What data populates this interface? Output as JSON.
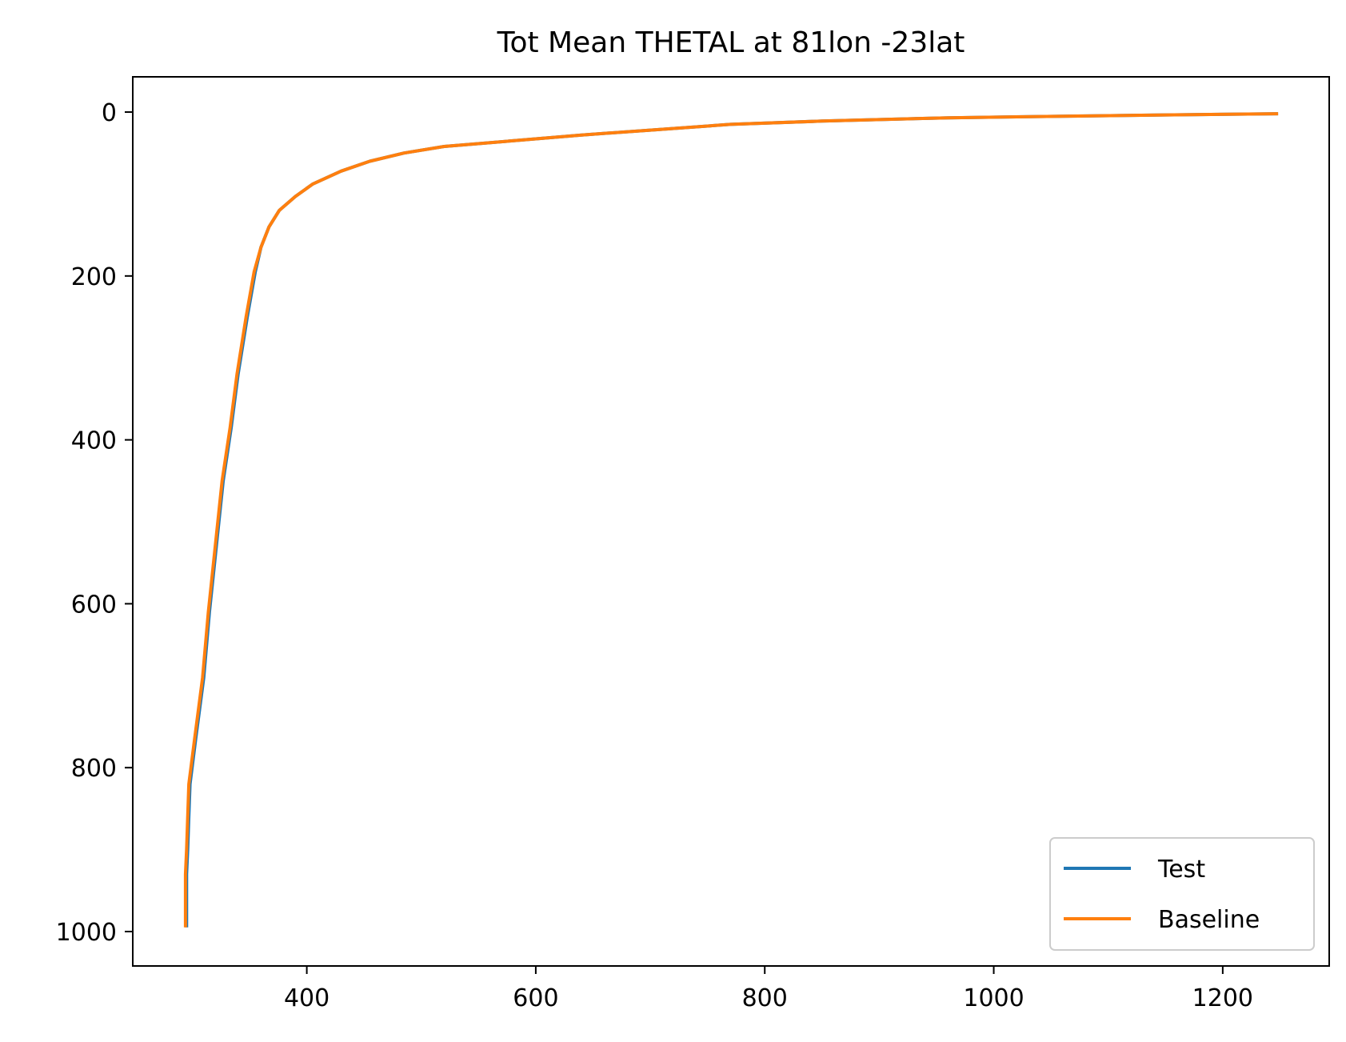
{
  "chart_data": {
    "type": "line",
    "title": "Tot Mean THETAL at 81lon -23lat",
    "xlabel": "",
    "ylabel": "",
    "xlim": [
      248,
      1293
    ],
    "ylim": [
      1042,
      -43
    ],
    "y_inverted": true,
    "grid": false,
    "legend_position": "lower-right",
    "x_ticks": [
      400,
      600,
      800,
      1000,
      1200
    ],
    "y_ticks": [
      0,
      200,
      400,
      600,
      800,
      1000
    ],
    "colors": {
      "test": "#1f77b4",
      "baseline": "#ff7f0e"
    },
    "series": [
      {
        "name": "Test",
        "color": "#1f77b4",
        "points": [
          [
            295,
            993
          ],
          [
            295,
            960
          ],
          [
            295,
            930
          ],
          [
            296,
            900
          ],
          [
            297,
            860
          ],
          [
            298,
            820
          ],
          [
            303,
            765
          ],
          [
            310,
            690
          ],
          [
            315,
            610
          ],
          [
            321,
            530
          ],
          [
            327,
            450
          ],
          [
            334,
            385
          ],
          [
            340,
            320
          ],
          [
            348,
            250
          ],
          [
            355,
            195
          ],
          [
            360,
            165
          ],
          [
            367,
            140
          ],
          [
            376,
            120
          ],
          [
            390,
            103
          ],
          [
            405,
            88
          ],
          [
            430,
            72
          ],
          [
            455,
            60
          ],
          [
            485,
            50
          ],
          [
            520,
            42
          ],
          [
            580,
            35
          ],
          [
            640,
            28
          ],
          [
            700,
            22
          ],
          [
            770,
            15
          ],
          [
            850,
            11
          ],
          [
            960,
            7
          ],
          [
            1060,
            5
          ],
          [
            1150,
            3.5
          ],
          [
            1247,
            2
          ]
        ]
      },
      {
        "name": "Baseline",
        "color": "#ff7f0e",
        "points": [
          [
            294,
            993
          ],
          [
            294,
            960
          ],
          [
            294,
            930
          ],
          [
            295,
            900
          ],
          [
            296,
            860
          ],
          [
            297,
            820
          ],
          [
            302,
            765
          ],
          [
            309,
            690
          ],
          [
            314,
            610
          ],
          [
            320,
            530
          ],
          [
            326,
            450
          ],
          [
            333,
            385
          ],
          [
            339,
            320
          ],
          [
            347,
            250
          ],
          [
            354,
            195
          ],
          [
            360,
            165
          ],
          [
            367,
            140
          ],
          [
            376,
            120
          ],
          [
            390,
            103
          ],
          [
            405,
            88
          ],
          [
            430,
            72
          ],
          [
            455,
            60
          ],
          [
            485,
            50
          ],
          [
            520,
            42
          ],
          [
            580,
            35
          ],
          [
            640,
            28
          ],
          [
            700,
            22
          ],
          [
            770,
            15
          ],
          [
            850,
            11
          ],
          [
            960,
            7
          ],
          [
            1060,
            5
          ],
          [
            1150,
            3.5
          ],
          [
            1247,
            2
          ]
        ]
      }
    ]
  }
}
